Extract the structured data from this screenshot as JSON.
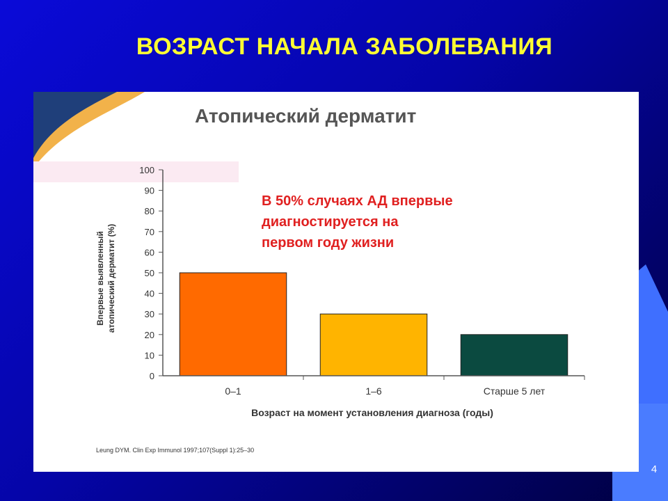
{
  "slide": {
    "title": "ВОЗРАСТ НАЧАЛА ЗАБОЛЕВАНИЯ",
    "page_number": "4"
  },
  "colors": {
    "background": "#0505a8",
    "title": "#ffff33",
    "callout": "#e02020",
    "accent": "#3f6fff"
  },
  "chart_data": {
    "type": "bar",
    "title": "Атопический дерматит",
    "categories": [
      "0–1",
      "1–6",
      "Старше 5 лет"
    ],
    "values": [
      50,
      30,
      20
    ],
    "colors": [
      "#ff6a00",
      "#ffb400",
      "#0b4a40"
    ],
    "ylim": [
      0,
      100
    ],
    "yticks": [
      0,
      10,
      20,
      30,
      40,
      50,
      60,
      70,
      80,
      90,
      100
    ],
    "ylabel_line1": "Впервые выявленный",
    "ylabel_line2": "атопический дерматит (%)",
    "xlabel": "Возраст на момент установления диагноза (годы)",
    "grid": false,
    "annotation": [
      "В 50% случаях АД впервые",
      "диагностируется на",
      "первом году жизни"
    ],
    "source": "Leung DYM. Clin Exp Immunol 1997;107(Suppl 1):25–30"
  }
}
